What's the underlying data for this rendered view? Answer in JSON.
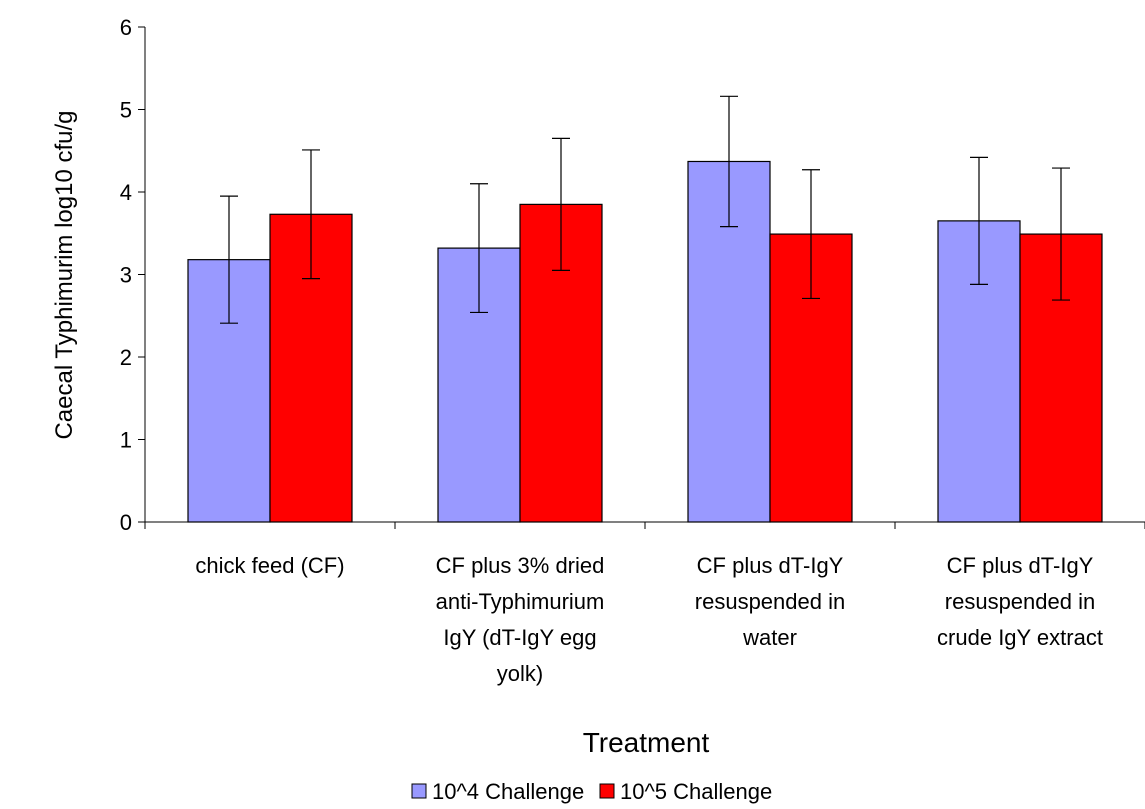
{
  "chart_data": {
    "type": "bar",
    "title": "",
    "xlabel": "Treatment",
    "ylabel": "Caecal Typhimurim log10 cfu/g",
    "ylim": [
      0,
      6
    ],
    "yticks": [
      0,
      1,
      2,
      3,
      4,
      5,
      6
    ],
    "grid": false,
    "legend_position": "bottom",
    "categories": [
      [
        "chick feed (CF)"
      ],
      [
        "CF plus 3% dried",
        "anti-Typhimurium",
        "IgY (dT-IgY egg",
        "yolk)"
      ],
      [
        "CF plus dT-IgY",
        "resuspended in",
        "water"
      ],
      [
        "CF plus dT-IgY",
        "resuspended in",
        "crude IgY extract"
      ]
    ],
    "series": [
      {
        "name": "10^4 Challenge",
        "color": "#9999ff",
        "values": [
          3.18,
          3.32,
          4.37,
          3.65
        ],
        "error": [
          0.77,
          0.78,
          0.79,
          0.77
        ]
      },
      {
        "name": "10^5 Challenge",
        "color": "#ff0000",
        "values": [
          3.73,
          3.85,
          3.49,
          3.49
        ],
        "error": [
          0.78,
          0.8,
          0.78,
          0.8
        ]
      }
    ]
  }
}
